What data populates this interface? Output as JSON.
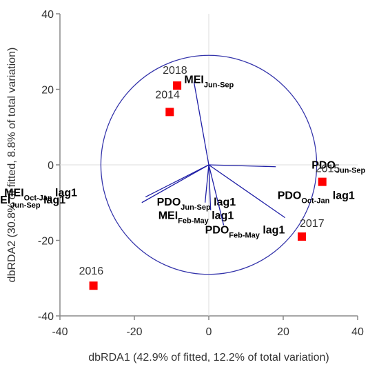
{
  "chart_data": {
    "type": "scatter",
    "title": "",
    "xlabel": "dbRDA1 (42.9% of fitted, 12.2% of total variation)",
    "ylabel": "dbRDA2 (30.8% of fitted, 8.8% of total variation)",
    "xlim": [
      -40,
      40
    ],
    "ylim": [
      -40,
      40
    ],
    "x_ticks": [
      "-40",
      "-20",
      "0",
      "20",
      "40"
    ],
    "y_ticks": [
      "-40",
      "-20",
      "0",
      "20",
      "40"
    ],
    "grid": false,
    "colors": {
      "point": "#ff0000",
      "vector": "#1f1fa6",
      "circle": "#3333aa",
      "axis": "#888888"
    },
    "points": [
      {
        "label": "2014",
        "x": -10.5,
        "y": 14
      },
      {
        "label": "2015",
        "x": 30.5,
        "y": -4.5
      },
      {
        "label": "2016",
        "x": -31,
        "y": -32
      },
      {
        "label": "2017",
        "x": 25,
        "y": -19
      },
      {
        "label": "2018",
        "x": -8.5,
        "y": 21
      }
    ],
    "circle": {
      "center": [
        0,
        0
      ],
      "radius": 29
    },
    "vectors": [
      {
        "main": "MEI",
        "sub": "Jun-Sep",
        "suffix": "",
        "x": -4,
        "y": 22
      },
      {
        "main": "PDO",
        "sub": "Jun-Sep",
        "suffix": "",
        "x": 18,
        "y": -0.5
      },
      {
        "main": "MEI",
        "sub": "Oct-Jan",
        "suffix": "lag1",
        "x": -17,
        "y": -8.5
      },
      {
        "main": "MEI",
        "sub": "Jun-Sep",
        "suffix": "lag1",
        "x": -18,
        "y": -10
      },
      {
        "main": "PDO",
        "sub": "Jun-Sep",
        "suffix": "lag1",
        "x": -1,
        "y": -10
      },
      {
        "main": "MEI",
        "sub": "Feb-May",
        "suffix": "lag1",
        "x": 0.5,
        "y": -12
      },
      {
        "main": "PDO",
        "sub": "Feb-May",
        "suffix": "lag1",
        "x": 4,
        "y": -16
      },
      {
        "main": "PDO",
        "sub": "Oct-Jan",
        "suffix": "lag1",
        "x": 20.5,
        "y": -14
      }
    ]
  }
}
